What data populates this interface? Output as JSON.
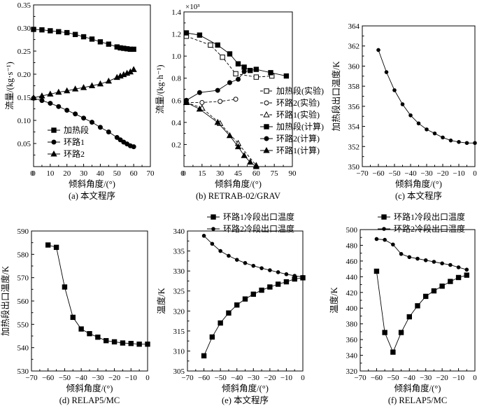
{
  "chart_data": [
    {
      "id": "a",
      "type": "scatter",
      "caption": "(a) 本文程序",
      "xlabel": "倾斜角度/(°)",
      "ylabel": "流量/(kg·s⁻¹)",
      "xlim": [
        0,
        70
      ],
      "ylim": [
        0,
        0.35
      ],
      "xticks": [
        0,
        10,
        20,
        30,
        40,
        50,
        60,
        70
      ],
      "yticks": [
        0.05,
        0.1,
        0.15,
        0.2,
        0.25,
        0.3,
        0.35
      ],
      "ytick_labels": [
        "0.05",
        "0.10",
        "0.15",
        "0.20",
        "0.25",
        "0.30",
        "0.35"
      ],
      "series": [
        {
          "name": "加热段",
          "marker": "square",
          "dash": "none",
          "x": [
            0,
            5,
            10,
            15,
            20,
            25,
            30,
            35,
            40,
            45,
            50,
            52,
            54,
            56,
            58,
            60
          ],
          "y": [
            0.297,
            0.296,
            0.294,
            0.292,
            0.29,
            0.286,
            0.281,
            0.276,
            0.27,
            0.265,
            0.259,
            0.257,
            0.256,
            0.255,
            0.254,
            0.254
          ]
        },
        {
          "name": "环路1",
          "marker": "circle",
          "dash": "none",
          "x": [
            0,
            5,
            10,
            15,
            20,
            25,
            30,
            35,
            40,
            45,
            50,
            52,
            54,
            56,
            58,
            60
          ],
          "y": [
            0.148,
            0.143,
            0.137,
            0.13,
            0.122,
            0.114,
            0.105,
            0.096,
            0.085,
            0.075,
            0.063,
            0.058,
            0.053,
            0.049,
            0.045,
            0.043
          ]
        },
        {
          "name": "环路2",
          "marker": "triangle",
          "dash": "none",
          "x": [
            0,
            5,
            10,
            15,
            20,
            25,
            30,
            35,
            40,
            45,
            50,
            52,
            54,
            56,
            58,
            60
          ],
          "y": [
            0.149,
            0.153,
            0.157,
            0.161,
            0.164,
            0.168,
            0.171,
            0.175,
            0.179,
            0.185,
            0.193,
            0.196,
            0.199,
            0.202,
            0.205,
            0.21
          ]
        }
      ]
    },
    {
      "id": "b",
      "type": "scatter",
      "caption": "(b) RETRAB-02/GRAV",
      "xlabel": "倾斜角度/(°)",
      "ylabel": "流量/(kg·h⁻¹)",
      "multiplier": "×10³",
      "xlim": [
        0,
        90
      ],
      "ylim": [
        0,
        1.4
      ],
      "xticks": [
        0,
        15,
        30,
        45,
        60,
        75,
        90
      ],
      "yticks": [
        0.2,
        0.4,
        0.6,
        0.8,
        1.0,
        1.2,
        1.4
      ],
      "ytick_labels": [
        "0.2",
        "0.4",
        "0.6",
        "0.8",
        "1.0",
        "1.2",
        "1.4"
      ],
      "series": [
        {
          "name": "加热段(实验)",
          "marker": "square-open",
          "dash": "dashed",
          "x": [
            2,
            22,
            32,
            43,
            60,
            73
          ],
          "y": [
            1.18,
            1.1,
            0.99,
            0.84,
            0.81,
            0.82
          ]
        },
        {
          "name": "环路2(实验)",
          "marker": "circle-open",
          "dash": "dashed",
          "x": [
            2,
            15,
            30,
            43
          ],
          "y": [
            0.58,
            0.58,
            0.59,
            0.61
          ]
        },
        {
          "name": "环路1(实验)",
          "marker": "triangle-open",
          "dash": "dashed",
          "x": [
            2,
            15,
            30,
            45,
            60
          ],
          "y": [
            0.58,
            0.53,
            0.39,
            0.21,
            0.01
          ]
        },
        {
          "name": "加热段(计算)",
          "marker": "square",
          "dash": "none",
          "x": [
            2,
            13,
            28,
            38,
            45,
            50,
            55,
            60,
            72,
            85
          ],
          "y": [
            1.21,
            1.19,
            1.1,
            1.02,
            0.93,
            0.9,
            0.87,
            0.88,
            0.85,
            0.82
          ]
        },
        {
          "name": "环路2(计算)",
          "marker": "circle",
          "dash": "none",
          "x": [
            2,
            13,
            28,
            38,
            45,
            50,
            55
          ],
          "y": [
            0.6,
            0.67,
            0.69,
            0.76,
            0.79,
            0.86,
            0.87
          ]
        },
        {
          "name": "环路1(计算)",
          "marker": "triangle",
          "dash": "none",
          "x": [
            2,
            13,
            28,
            38,
            45,
            50,
            55,
            60
          ],
          "y": [
            0.58,
            0.52,
            0.4,
            0.28,
            0.18,
            0.1,
            0.04,
            0.0
          ]
        }
      ]
    },
    {
      "id": "c",
      "type": "scatter",
      "caption": "(c) 本文程序",
      "xlabel": "倾斜角度/(°)",
      "ylabel": "加热段出口温度/K",
      "xlim": [
        -70,
        0
      ],
      "ylim": [
        350,
        364
      ],
      "xticks": [
        -70,
        -60,
        -50,
        -40,
        -30,
        -20,
        -10,
        0
      ],
      "yticks": [
        350,
        352,
        354,
        356,
        358,
        360,
        362,
        364
      ],
      "ytick_labels": [
        "350",
        "352",
        "354",
        "356",
        "358",
        "360",
        "362",
        "364"
      ],
      "series": [
        {
          "name": "加热段出口温度",
          "marker": "dot",
          "dash": "none",
          "x": [
            -60,
            -55,
            -50,
            -45,
            -40,
            -35,
            -30,
            -25,
            -20,
            -15,
            -10,
            -5,
            0
          ],
          "y": [
            361.6,
            359.4,
            357.6,
            356.2,
            355.1,
            354.3,
            353.7,
            353.3,
            352.9,
            352.6,
            352.45,
            352.35,
            352.35
          ]
        }
      ]
    },
    {
      "id": "d",
      "type": "scatter",
      "caption": "(d) RELAP5/MC",
      "xlabel": "倾斜角度/(°)",
      "ylabel": "加热段出口温度/K",
      "xlim": [
        -70,
        0
      ],
      "ylim": [
        530,
        590
      ],
      "xticks": [
        -70,
        -60,
        -50,
        -40,
        -30,
        -20,
        -10,
        0
      ],
      "yticks": [
        530,
        540,
        550,
        560,
        570,
        580,
        590
      ],
      "ytick_labels": [
        "530",
        "540",
        "550",
        "560",
        "570",
        "580",
        "590"
      ],
      "series": [
        {
          "name": "加热段出口温度",
          "marker": "square",
          "dash": "none",
          "x": [
            -60,
            -55,
            -50,
            -45,
            -40,
            -35,
            -30,
            -25,
            -20,
            -15,
            -10,
            -5,
            0
          ],
          "y": [
            584,
            583,
            566,
            553,
            548,
            546,
            544.5,
            543,
            542.5,
            542,
            541.8,
            541.5,
            541.5
          ]
        }
      ]
    },
    {
      "id": "e",
      "type": "scatter",
      "caption": "(e) 本文程序",
      "xlabel": "倾斜角度/(°)",
      "ylabel": "温度/K",
      "xlim": [
        -70,
        0
      ],
      "ylim": [
        305,
        340
      ],
      "xticks": [
        -70,
        -60,
        -50,
        -40,
        -30,
        -20,
        -10,
        0
      ],
      "yticks": [
        305,
        310,
        315,
        320,
        325,
        330,
        335,
        340
      ],
      "ytick_labels": [
        "305",
        "310",
        "315",
        "320",
        "325",
        "330",
        "335",
        "340"
      ],
      "series": [
        {
          "name": "环路1冷段出口温度",
          "marker": "square",
          "dash": "none",
          "x": [
            -60,
            -55,
            -50,
            -45,
            -40,
            -35,
            -30,
            -25,
            -20,
            -15,
            -10,
            -5,
            0
          ],
          "y": [
            308.8,
            313.5,
            317,
            319.5,
            321.5,
            323,
            324.2,
            325.2,
            326,
            326.7,
            327.3,
            328,
            328.3
          ]
        },
        {
          "name": "环路2冷段出口温度",
          "marker": "dot",
          "dash": "none",
          "x": [
            -60,
            -55,
            -50,
            -45,
            -40,
            -35,
            -30,
            -25,
            -20,
            -15,
            -10,
            -5,
            0
          ],
          "y": [
            338.8,
            336.8,
            335,
            333.8,
            332.8,
            332,
            331.3,
            330.7,
            330.2,
            329.7,
            329.2,
            328.8,
            328.5
          ]
        }
      ]
    },
    {
      "id": "f",
      "type": "scatter",
      "caption": "(f) RELAP5/MC",
      "xlabel": "倾斜角度/(°)",
      "ylabel": "温度/K",
      "xlim": [
        -70,
        0
      ],
      "ylim": [
        320,
        500
      ],
      "xticks": [
        -70,
        -60,
        -50,
        -40,
        -30,
        -20,
        -10,
        0
      ],
      "yticks": [
        320,
        340,
        360,
        380,
        400,
        420,
        440,
        460,
        480,
        500
      ],
      "ytick_labels": [
        "320",
        "340",
        "360",
        "380",
        "400",
        "420",
        "440",
        "460",
        "480",
        "500"
      ],
      "series": [
        {
          "name": "环路1冷段出口温度",
          "marker": "square",
          "dash": "none",
          "x": [
            -60,
            -55,
            -50,
            -45,
            -40,
            -35,
            -30,
            -25,
            -20,
            -15,
            -10,
            -5
          ],
          "y": [
            447,
            369,
            344,
            369,
            389,
            403,
            415,
            422,
            428,
            434,
            439,
            442
          ]
        },
        {
          "name": "环路2冷段出口温度",
          "marker": "dot",
          "dash": "none",
          "x": [
            -60,
            -55,
            -50,
            -45,
            -40,
            -35,
            -30,
            -25,
            -20,
            -15,
            -10,
            -5
          ],
          "y": [
            488,
            487,
            481,
            469,
            465,
            463,
            461,
            459,
            457,
            455,
            452,
            449
          ]
        }
      ]
    }
  ]
}
